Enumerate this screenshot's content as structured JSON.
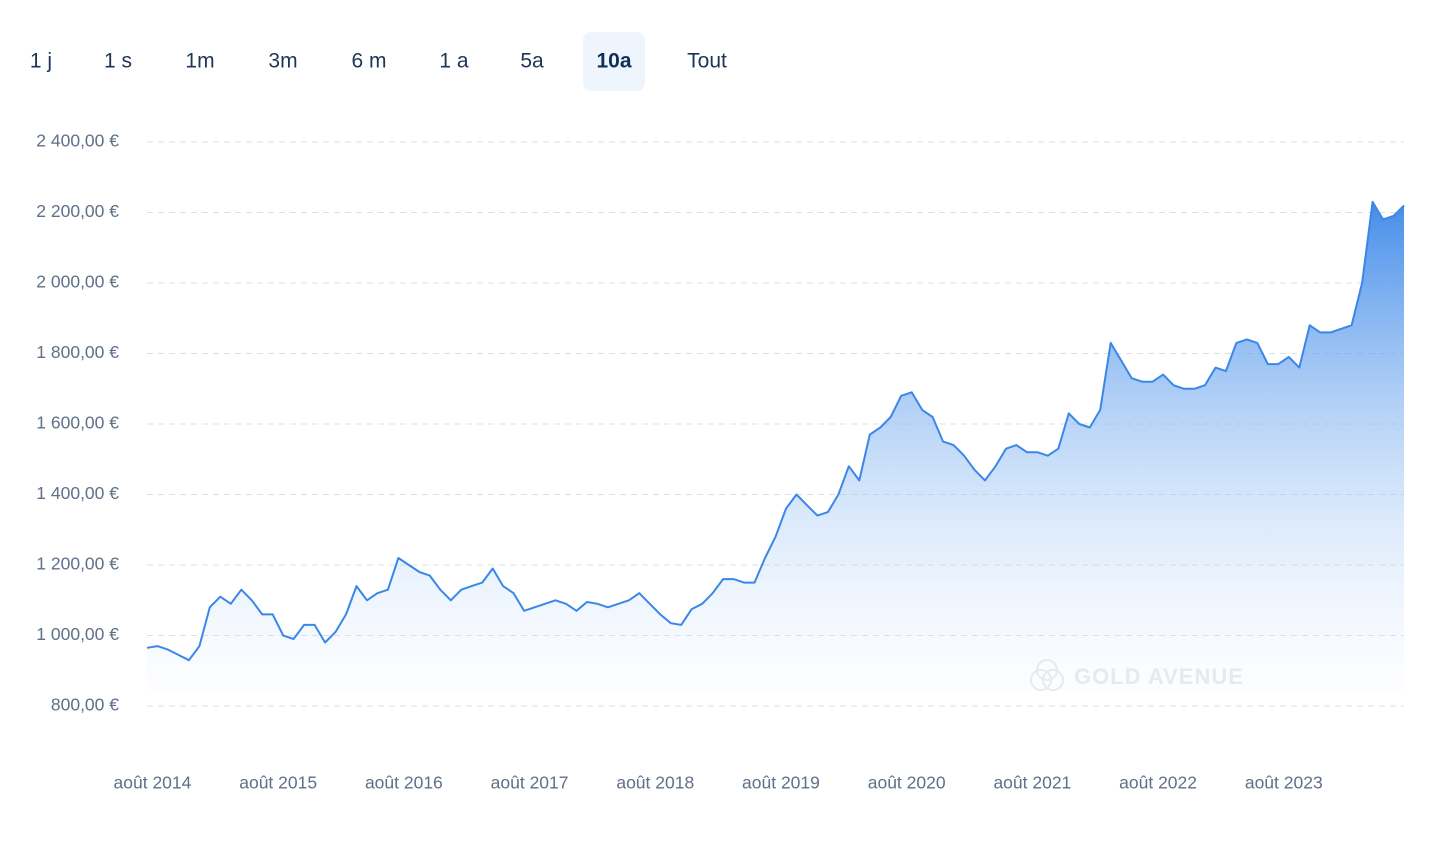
{
  "range_buttons": [
    "1 j",
    "1 s",
    "1m",
    "3m",
    "6 m",
    "1 a",
    "5a",
    "10a",
    "Tout"
  ],
  "selected_range": "10a",
  "watermark": "GOLD AVENUE",
  "chart_data": {
    "type": "area",
    "color": "#3b87e8",
    "grid": true,
    "x": [
      "2014-07",
      "2014-08",
      "2014-09",
      "2014-10",
      "2014-11",
      "2014-12",
      "2015-01",
      "2015-02",
      "2015-03",
      "2015-04",
      "2015-05",
      "2015-06",
      "2015-07",
      "2015-08",
      "2015-09",
      "2015-10",
      "2015-11",
      "2015-12",
      "2016-01",
      "2016-02",
      "2016-03",
      "2016-04",
      "2016-05",
      "2016-06",
      "2016-07",
      "2016-08",
      "2016-09",
      "2016-10",
      "2016-11",
      "2016-12",
      "2017-01",
      "2017-02",
      "2017-03",
      "2017-04",
      "2017-05",
      "2017-06",
      "2017-07",
      "2017-08",
      "2017-09",
      "2017-10",
      "2017-11",
      "2017-12",
      "2018-01",
      "2018-02",
      "2018-03",
      "2018-04",
      "2018-05",
      "2018-06",
      "2018-07",
      "2018-08",
      "2018-09",
      "2018-10",
      "2018-11",
      "2018-12",
      "2019-01",
      "2019-02",
      "2019-03",
      "2019-04",
      "2019-05",
      "2019-06",
      "2019-07",
      "2019-08",
      "2019-09",
      "2019-10",
      "2019-11",
      "2019-12",
      "2020-01",
      "2020-02",
      "2020-03",
      "2020-04",
      "2020-05",
      "2020-06",
      "2020-07",
      "2020-08",
      "2020-09",
      "2020-10",
      "2020-11",
      "2020-12",
      "2021-01",
      "2021-02",
      "2021-03",
      "2021-04",
      "2021-05",
      "2021-06",
      "2021-07",
      "2021-08",
      "2021-09",
      "2021-10",
      "2021-11",
      "2021-12",
      "2022-01",
      "2022-02",
      "2022-03",
      "2022-04",
      "2022-05",
      "2022-06",
      "2022-07",
      "2022-08",
      "2022-09",
      "2022-10",
      "2022-11",
      "2022-12",
      "2023-01",
      "2023-02",
      "2023-03",
      "2023-04",
      "2023-05",
      "2023-06",
      "2023-07",
      "2023-08",
      "2023-09",
      "2023-10",
      "2023-11",
      "2023-12",
      "2024-01",
      "2024-02",
      "2024-03",
      "2024-04",
      "2024-05",
      "2024-06",
      "2024-07"
    ],
    "values": [
      965,
      970,
      960,
      945,
      930,
      970,
      1080,
      1110,
      1090,
      1130,
      1100,
      1060,
      1060,
      1000,
      990,
      1030,
      1030,
      980,
      1010,
      1060,
      1140,
      1100,
      1120,
      1130,
      1220,
      1200,
      1180,
      1170,
      1130,
      1100,
      1130,
      1140,
      1150,
      1190,
      1140,
      1120,
      1070,
      1080,
      1090,
      1100,
      1090,
      1070,
      1095,
      1090,
      1080,
      1090,
      1100,
      1120,
      1090,
      1060,
      1035,
      1030,
      1075,
      1090,
      1120,
      1160,
      1160,
      1150,
      1150,
      1220,
      1280,
      1360,
      1400,
      1370,
      1340,
      1350,
      1400,
      1480,
      1440,
      1570,
      1590,
      1620,
      1680,
      1690,
      1640,
      1620,
      1550,
      1540,
      1510,
      1470,
      1440,
      1480,
      1530,
      1540,
      1520,
      1520,
      1510,
      1530,
      1630,
      1600,
      1590,
      1640,
      1830,
      1780,
      1730,
      1720,
      1720,
      1740,
      1710,
      1700,
      1700,
      1710,
      1760,
      1750,
      1830,
      1840,
      1830,
      1770,
      1770,
      1790,
      1760,
      1880,
      1860,
      1860,
      1870,
      1880,
      2000,
      2230,
      2180,
      2190,
      2220
    ],
    "ylim": [
      800,
      2400
    ],
    "yticks": [
      {
        "value": 800,
        "label": "800,00 €"
      },
      {
        "value": 1000,
        "label": "1 000,00 €"
      },
      {
        "value": 1200,
        "label": "1 200,00 €"
      },
      {
        "value": 1400,
        "label": "1 400,00 €"
      },
      {
        "value": 1600,
        "label": "1 600,00 €"
      },
      {
        "value": 1800,
        "label": "1 800,00 €"
      },
      {
        "value": 2000,
        "label": "2 000,00 €"
      },
      {
        "value": 2200,
        "label": "2 200,00 €"
      },
      {
        "value": 2400,
        "label": "2 400,00 €"
      }
    ],
    "xticks": [
      {
        "value": "2014-08",
        "label": "août 2014"
      },
      {
        "value": "2015-08",
        "label": "août 2015"
      },
      {
        "value": "2016-08",
        "label": "août 2016"
      },
      {
        "value": "2017-08",
        "label": "août 2017"
      },
      {
        "value": "2018-08",
        "label": "août 2018"
      },
      {
        "value": "2019-08",
        "label": "août 2019"
      },
      {
        "value": "2020-08",
        "label": "août 2020"
      },
      {
        "value": "2021-08",
        "label": "août 2021"
      },
      {
        "value": "2022-08",
        "label": "août 2022"
      },
      {
        "value": "2023-08",
        "label": "août 2023"
      }
    ]
  }
}
